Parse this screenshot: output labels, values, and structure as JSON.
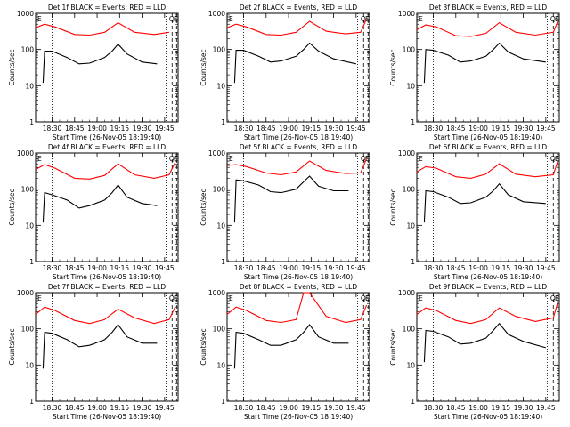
{
  "figure": {
    "start_time_label": "Start Time (26-Nov-05 18:19:40)",
    "ylabel": "Counts/sec",
    "x_ticks": [
      "18:30",
      "18:45",
      "19:00",
      "19:15",
      "19:30",
      "19:45"
    ],
    "y_ticks": [
      "1",
      "10",
      "100",
      "1000"
    ],
    "line_colors": {
      "events": "#000000",
      "lld": "#ff0000"
    },
    "marker_labels": [
      "E",
      "Q",
      "E"
    ]
  },
  "chart_data": [
    {
      "type": "line",
      "title": "Det 1f BLACK = Events, RED = LLD",
      "ylim": [
        1,
        1000
      ],
      "log_y": true,
      "series": [
        {
          "name": "Events",
          "x": [
            "18:24",
            "18:25",
            "18:30",
            "18:40",
            "18:48",
            "18:55",
            "19:05",
            "19:10",
            "19:14",
            "19:20",
            "19:30",
            "19:40"
          ],
          "y": [
            12,
            90,
            90,
            60,
            40,
            42,
            60,
            90,
            140,
            75,
            45,
            40
          ]
        },
        {
          "name": "LLD",
          "x": [
            "18:19",
            "18:25",
            "18:32",
            "18:45",
            "18:55",
            "19:05",
            "19:14",
            "19:25",
            "19:38",
            "19:48"
          ],
          "y": [
            400,
            500,
            420,
            260,
            250,
            300,
            550,
            300,
            260,
            300
          ]
        }
      ]
    },
    {
      "type": "line",
      "title": "Det 2f BLACK = Events, RED = LLD",
      "ylim": [
        1,
        1000
      ],
      "log_y": true,
      "series": [
        {
          "name": "Events",
          "x": [
            "18:24",
            "18:25",
            "18:30",
            "18:40",
            "18:48",
            "18:55",
            "19:05",
            "19:10",
            "19:14",
            "19:20",
            "19:30",
            "19:45"
          ],
          "y": [
            12,
            95,
            95,
            65,
            45,
            48,
            65,
            100,
            150,
            90,
            55,
            40
          ]
        },
        {
          "name": "LLD",
          "x": [
            "18:19",
            "18:25",
            "18:32",
            "18:45",
            "18:55",
            "19:05",
            "19:14",
            "19:25",
            "19:38",
            "19:48",
            "19:52"
          ],
          "y": [
            400,
            500,
            420,
            260,
            250,
            300,
            600,
            320,
            270,
            300,
            700
          ]
        }
      ]
    },
    {
      "type": "line",
      "title": "Det 3f BLACK = Events, RED = LLD",
      "ylim": [
        1,
        1000
      ],
      "log_y": true,
      "series": [
        {
          "name": "Events",
          "x": [
            "18:24",
            "18:25",
            "18:30",
            "18:40",
            "18:48",
            "18:55",
            "19:05",
            "19:10",
            "19:14",
            "19:20",
            "19:30",
            "19:45"
          ],
          "y": [
            12,
            100,
            95,
            70,
            45,
            48,
            65,
            100,
            150,
            85,
            55,
            45
          ]
        },
        {
          "name": "LLD",
          "x": [
            "18:19",
            "18:25",
            "18:32",
            "18:45",
            "18:55",
            "19:05",
            "19:14",
            "19:25",
            "19:38",
            "19:50",
            "19:53"
          ],
          "y": [
            350,
            480,
            420,
            240,
            230,
            280,
            550,
            300,
            250,
            300,
            600
          ]
        }
      ]
    },
    {
      "type": "line",
      "title": "Det 4f BLACK = Events, RED = LLD",
      "ylim": [
        1,
        1000
      ],
      "log_y": true,
      "series": [
        {
          "name": "Events",
          "x": [
            "18:24",
            "18:25",
            "18:30",
            "18:40",
            "18:48",
            "18:55",
            "19:05",
            "19:10",
            "19:14",
            "19:20",
            "19:30",
            "19:40"
          ],
          "y": [
            12,
            80,
            70,
            50,
            30,
            35,
            50,
            80,
            130,
            60,
            40,
            35
          ]
        },
        {
          "name": "LLD",
          "x": [
            "18:19",
            "18:25",
            "18:32",
            "18:45",
            "18:55",
            "19:05",
            "19:14",
            "19:25",
            "19:38",
            "19:48",
            "19:52"
          ],
          "y": [
            350,
            480,
            380,
            200,
            190,
            240,
            500,
            250,
            200,
            250,
            550
          ]
        }
      ]
    },
    {
      "type": "line",
      "title": "Det 5f BLACK = Events, RED = LLD",
      "ylim": [
        1,
        1000
      ],
      "log_y": true,
      "series": [
        {
          "name": "Events",
          "x": [
            "18:24",
            "18:25",
            "18:30",
            "18:40",
            "18:48",
            "18:55",
            "19:05",
            "19:10",
            "19:14",
            "19:20",
            "19:30",
            "19:40"
          ],
          "y": [
            12,
            180,
            170,
            130,
            85,
            80,
            100,
            160,
            230,
            120,
            90,
            90
          ]
        },
        {
          "name": "LLD",
          "x": [
            "18:19",
            "18:25",
            "18:32",
            "18:45",
            "18:55",
            "19:05",
            "19:14",
            "19:25",
            "19:38",
            "19:48",
            "19:52"
          ],
          "y": [
            450,
            480,
            420,
            280,
            250,
            300,
            600,
            330,
            270,
            280,
            700
          ]
        }
      ]
    },
    {
      "type": "line",
      "title": "Det 6f BLACK = Events, RED = LLD",
      "ylim": [
        1,
        1000
      ],
      "log_y": true,
      "series": [
        {
          "name": "Events",
          "x": [
            "18:24",
            "18:25",
            "18:30",
            "18:40",
            "18:48",
            "18:55",
            "19:05",
            "19:10",
            "19:14",
            "19:20",
            "19:30",
            "19:45"
          ],
          "y": [
            12,
            90,
            85,
            60,
            40,
            42,
            60,
            90,
            140,
            70,
            45,
            40
          ]
        },
        {
          "name": "LLD",
          "x": [
            "18:19",
            "18:25",
            "18:32",
            "18:45",
            "18:55",
            "19:05",
            "19:14",
            "19:25",
            "19:38",
            "19:50",
            "19:53"
          ],
          "y": [
            300,
            420,
            380,
            220,
            200,
            260,
            500,
            260,
            220,
            250,
            600
          ]
        }
      ]
    },
    {
      "type": "line",
      "title": "Det 7f BLACK = Events, RED = LLD",
      "ylim": [
        1,
        1000
      ],
      "log_y": true,
      "series": [
        {
          "name": "Events",
          "x": [
            "18:24",
            "18:25",
            "18:30",
            "18:40",
            "18:48",
            "18:55",
            "19:05",
            "19:10",
            "19:14",
            "19:20",
            "19:30",
            "19:40"
          ],
          "y": [
            8,
            80,
            75,
            50,
            32,
            35,
            50,
            80,
            130,
            60,
            40,
            40
          ]
        },
        {
          "name": "LLD",
          "x": [
            "18:19",
            "18:25",
            "18:32",
            "18:45",
            "18:55",
            "19:05",
            "19:14",
            "19:25",
            "19:38",
            "19:48",
            "19:52"
          ],
          "y": [
            250,
            400,
            320,
            170,
            140,
            180,
            350,
            200,
            140,
            180,
            400
          ]
        }
      ]
    },
    {
      "type": "line",
      "title": "Det 8f BLACK = Events, RED = LLD",
      "ylim": [
        1,
        1000
      ],
      "log_y": true,
      "series": [
        {
          "name": "Events",
          "x": [
            "18:24",
            "18:25",
            "18:30",
            "18:40",
            "18:48",
            "18:55",
            "19:05",
            "19:10",
            "19:14",
            "19:20",
            "19:30",
            "19:40"
          ],
          "y": [
            8,
            80,
            75,
            50,
            35,
            35,
            50,
            80,
            130,
            60,
            40,
            40
          ]
        },
        {
          "name": "LLD",
          "x": [
            "18:19",
            "18:25",
            "18:32",
            "18:45",
            "18:55",
            "19:05",
            "19:10",
            "19:14",
            "19:25",
            "19:38",
            "19:48",
            "19:52"
          ],
          "y": [
            250,
            400,
            320,
            170,
            150,
            180,
            1000,
            1000,
            220,
            150,
            180,
            450
          ]
        }
      ]
    },
    {
      "type": "line",
      "title": "Det 9f BLACK = Events, RED = LLD",
      "ylim": [
        1,
        1000
      ],
      "log_y": true,
      "series": [
        {
          "name": "Events",
          "x": [
            "18:24",
            "18:25",
            "18:30",
            "18:40",
            "18:48",
            "18:55",
            "19:05",
            "19:10",
            "19:14",
            "19:20",
            "19:30",
            "19:45"
          ],
          "y": [
            12,
            90,
            85,
            60,
            38,
            40,
            55,
            90,
            140,
            70,
            45,
            30
          ]
        },
        {
          "name": "LLD",
          "x": [
            "18:19",
            "18:25",
            "18:32",
            "18:45",
            "18:55",
            "19:05",
            "19:14",
            "19:25",
            "19:38",
            "19:50",
            "19:53"
          ],
          "y": [
            250,
            380,
            320,
            170,
            140,
            180,
            380,
            220,
            160,
            200,
            550
          ]
        }
      ]
    }
  ]
}
